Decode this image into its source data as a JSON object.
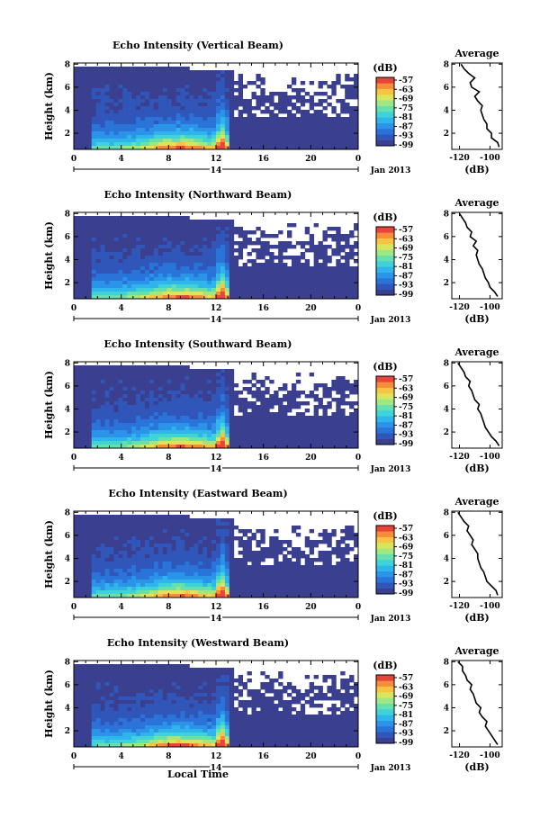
{
  "colors": {
    "colormap": [
      "#3a3f8f",
      "#2f56b8",
      "#2a73d8",
      "#2b93e8",
      "#2fb5ec",
      "#3fd2d9",
      "#67e0b0",
      "#9fe782",
      "#d9e55c",
      "#f7c343",
      "#f68d3a",
      "#e8453a"
    ],
    "background": "#ffffff",
    "line": "#000000"
  },
  "chart_data": [
    {
      "type": "heatmap",
      "title": "Echo Intensity (Vertical Beam)",
      "ylabel": "Height (km)",
      "xlabel": "",
      "x_ticks": [
        "0",
        "4",
        "8",
        "12",
        "16",
        "20",
        "0"
      ],
      "x_range": [
        0,
        24
      ],
      "y_ticks": [
        "2",
        "4",
        "6",
        "8"
      ],
      "y_range": [
        0.6,
        8.1
      ],
      "date_tick": "14",
      "date_label": "Jan 2013",
      "colorbar": {
        "unit": "(dB)",
        "ticks": [
          "-57",
          "-63",
          "-69",
          "-75",
          "-81",
          "-87",
          "-93",
          "-99"
        ]
      },
      "profile": {
        "title": "Average",
        "xlabel": "(dB)",
        "x_ticks": [
          "-120",
          "-100"
        ],
        "x_range": [
          -125,
          -92
        ],
        "y_ticks": [
          "2",
          "4",
          "6",
          "8"
        ],
        "y_range": [
          0.6,
          8.1
        ],
        "height_km": [
          0.8,
          1.2,
          1.6,
          2.0,
          2.4,
          2.8,
          3.2,
          3.6,
          4.0,
          4.4,
          4.8,
          5.2,
          5.6,
          6.0,
          6.4,
          6.8,
          7.2,
          7.6,
          8.0
        ],
        "values_db": [
          -94,
          -95,
          -99,
          -99,
          -102,
          -102,
          -104,
          -105,
          -106,
          -105,
          -108,
          -110,
          -107,
          -112,
          -113,
          -110,
          -114,
          -117,
          -119
        ]
      }
    },
    {
      "type": "heatmap",
      "title": "Echo Intensity (Northward Beam)",
      "ylabel": "Height (km)",
      "xlabel": "",
      "x_ticks": [
        "0",
        "4",
        "8",
        "12",
        "16",
        "20",
        "0"
      ],
      "x_range": [
        0,
        24
      ],
      "y_ticks": [
        "2",
        "4",
        "6",
        "8"
      ],
      "y_range": [
        0.6,
        8.1
      ],
      "date_tick": "14",
      "date_label": "Jan 2013",
      "colorbar": {
        "unit": "(dB)",
        "ticks": [
          "-57",
          "-63",
          "-69",
          "-75",
          "-81",
          "-87",
          "-93",
          "-99"
        ]
      },
      "profile": {
        "title": "Average",
        "xlabel": "(dB)",
        "x_ticks": [
          "-120",
          "-100"
        ],
        "x_range": [
          -125,
          -92
        ],
        "y_ticks": [
          "2",
          "4",
          "6",
          "8"
        ],
        "y_range": [
          0.6,
          8.1
        ],
        "height_km": [
          0.8,
          1.2,
          1.6,
          2.0,
          2.4,
          2.8,
          3.2,
          3.6,
          4.0,
          4.4,
          4.8,
          5.2,
          5.6,
          6.0,
          6.4,
          6.8,
          7.2,
          7.6,
          8.0
        ],
        "values_db": [
          -95,
          -97,
          -100,
          -101,
          -103,
          -104,
          -105,
          -107,
          -108,
          -109,
          -108,
          -111,
          -109,
          -113,
          -112,
          -115,
          -116,
          -118,
          -120
        ]
      }
    },
    {
      "type": "heatmap",
      "title": "Echo Intensity (Southward Beam)",
      "ylabel": "Height (km)",
      "xlabel": "",
      "x_ticks": [
        "0",
        "4",
        "8",
        "12",
        "16",
        "20",
        "0"
      ],
      "x_range": [
        0,
        24
      ],
      "y_ticks": [
        "2",
        "4",
        "6",
        "8"
      ],
      "y_range": [
        0.6,
        8.1
      ],
      "date_tick": "14",
      "date_label": "Jan 2013",
      "colorbar": {
        "unit": "(dB)",
        "ticks": [
          "-57",
          "-63",
          "-69",
          "-75",
          "-81",
          "-87",
          "-93",
          "-99"
        ]
      },
      "profile": {
        "title": "Average",
        "xlabel": "(dB)",
        "x_ticks": [
          "-120",
          "-100"
        ],
        "x_range": [
          -125,
          -92
        ],
        "y_ticks": [
          "2",
          "4",
          "6",
          "8"
        ],
        "y_range": [
          0.6,
          8.1
        ],
        "height_km": [
          0.8,
          1.2,
          1.6,
          2.0,
          2.4,
          2.8,
          3.2,
          3.6,
          4.0,
          4.4,
          4.8,
          5.2,
          5.6,
          6.0,
          6.4,
          6.8,
          7.2,
          7.6,
          8.0
        ],
        "values_db": [
          -94,
          -96,
          -99,
          -101,
          -103,
          -104,
          -105,
          -106,
          -108,
          -107,
          -110,
          -111,
          -112,
          -114,
          -113,
          -116,
          -117,
          -119,
          -121
        ]
      }
    },
    {
      "type": "heatmap",
      "title": "Echo Intensity (Eastward Beam)",
      "ylabel": "Height (km)",
      "xlabel": "",
      "x_ticks": [
        "0",
        "4",
        "8",
        "12",
        "16",
        "20",
        "0"
      ],
      "x_range": [
        0,
        24
      ],
      "y_ticks": [
        "2",
        "4",
        "6",
        "8"
      ],
      "y_range": [
        0.6,
        8.1
      ],
      "date_tick": "14",
      "date_label": "Jan 2013",
      "colorbar": {
        "unit": "(dB)",
        "ticks": [
          "-57",
          "-63",
          "-69",
          "-75",
          "-81",
          "-87",
          "-93",
          "-99"
        ]
      },
      "profile": {
        "title": "Average",
        "xlabel": "(dB)",
        "x_ticks": [
          "-120",
          "-100"
        ],
        "x_range": [
          -125,
          -92
        ],
        "y_ticks": [
          "2",
          "4",
          "6",
          "8"
        ],
        "y_range": [
          0.6,
          8.1
        ],
        "height_km": [
          0.8,
          1.2,
          1.6,
          2.0,
          2.4,
          2.8,
          3.2,
          3.6,
          4.0,
          4.4,
          4.8,
          5.2,
          5.6,
          6.0,
          6.4,
          6.8,
          7.2,
          7.6,
          8.0
        ],
        "values_db": [
          -95,
          -96,
          -99,
          -102,
          -103,
          -104,
          -106,
          -107,
          -108,
          -108,
          -110,
          -112,
          -111,
          -113,
          -115,
          -114,
          -117,
          -119,
          -121
        ]
      }
    },
    {
      "type": "heatmap",
      "title": "Echo Intensity (Westward Beam)",
      "ylabel": "Height (km)",
      "xlabel": "Local Time",
      "x_ticks": [
        "0",
        "4",
        "8",
        "12",
        "16",
        "20",
        "0"
      ],
      "x_range": [
        0,
        24
      ],
      "y_ticks": [
        "2",
        "4",
        "6",
        "8"
      ],
      "y_range": [
        0.6,
        8.1
      ],
      "date_tick": "14",
      "date_label": "Jan 2013",
      "colorbar": {
        "unit": "(dB)",
        "ticks": [
          "-57",
          "-63",
          "-69",
          "-75",
          "-81",
          "-87",
          "-93",
          "-99"
        ]
      },
      "profile": {
        "title": "Average",
        "xlabel": "(dB)",
        "x_ticks": [
          "-120",
          "-100"
        ],
        "x_range": [
          -125,
          -92
        ],
        "y_ticks": [
          "2",
          "4",
          "6",
          "8"
        ],
        "y_range": [
          0.6,
          8.1
        ],
        "height_km": [
          0.8,
          1.2,
          1.6,
          2.0,
          2.4,
          2.8,
          3.2,
          3.6,
          4.0,
          4.4,
          4.8,
          5.2,
          5.6,
          6.0,
          6.4,
          6.8,
          7.2,
          7.6,
          8.0
        ],
        "values_db": [
          -95,
          -97,
          -99,
          -101,
          -103,
          -102,
          -105,
          -107,
          -106,
          -109,
          -110,
          -111,
          -113,
          -112,
          -115,
          -116,
          -118,
          -118,
          -121
        ]
      }
    }
  ]
}
